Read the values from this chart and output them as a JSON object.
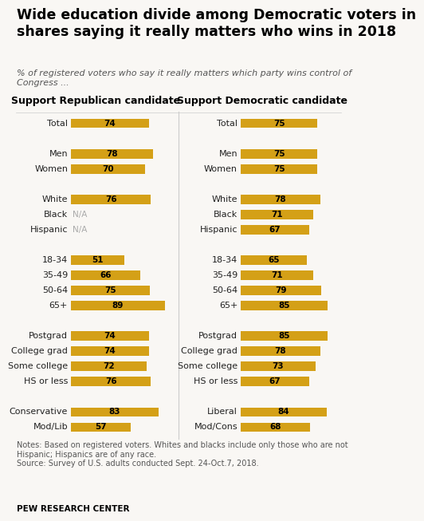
{
  "title": "Wide education divide among Democratic voters in\nshares saying it really matters who wins in 2018",
  "subtitle": "% of registered voters who say it really matters which party wins control of\nCongress ...",
  "left_header": "Support Republican candidate",
  "right_header": "Support Democratic candidate",
  "left_labels": [
    "Total",
    "",
    "Men",
    "Women",
    "",
    "White",
    "Black",
    "Hispanic",
    "",
    "18-34",
    "35-49",
    "50-64",
    "65+",
    "",
    "Postgrad",
    "College grad",
    "Some college",
    "HS or less",
    "",
    "Conservative",
    "Mod/Lib"
  ],
  "right_labels": [
    "Total",
    "",
    "Men",
    "Women",
    "",
    "White",
    "Black",
    "Hispanic",
    "",
    "18-34",
    "35-49",
    "50-64",
    "65+",
    "",
    "Postgrad",
    "College grad",
    "Some college",
    "HS or less",
    "",
    "Liberal",
    "Mod/Cons"
  ],
  "left_values": [
    74,
    null,
    78,
    70,
    null,
    76,
    "N/A",
    "N/A",
    null,
    51,
    66,
    75,
    89,
    null,
    74,
    74,
    72,
    76,
    null,
    83,
    57
  ],
  "right_values": [
    75,
    null,
    75,
    75,
    null,
    78,
    71,
    67,
    null,
    65,
    71,
    79,
    85,
    null,
    85,
    78,
    73,
    67,
    null,
    84,
    68
  ],
  "bar_color": "#D4A017",
  "na_color": "#aaaaaa",
  "background_color": "#f9f7f4",
  "divider_color": "#cccccc",
  "title_fontsize": 12.5,
  "subtitle_fontsize": 8,
  "label_fontsize": 8,
  "value_fontsize": 7.5,
  "header_fontsize": 9,
  "notes_fontsize": 7,
  "footer_fontsize": 7.5,
  "notes": "Notes: Based on registered voters. Whites and blacks include only those who are not\nHispanic; Hispanics are of any race.\nSource: Survey of U.S. adults conducted Sept. 24-Oct.7, 2018.",
  "footer": "PEW RESEARCH CENTER"
}
